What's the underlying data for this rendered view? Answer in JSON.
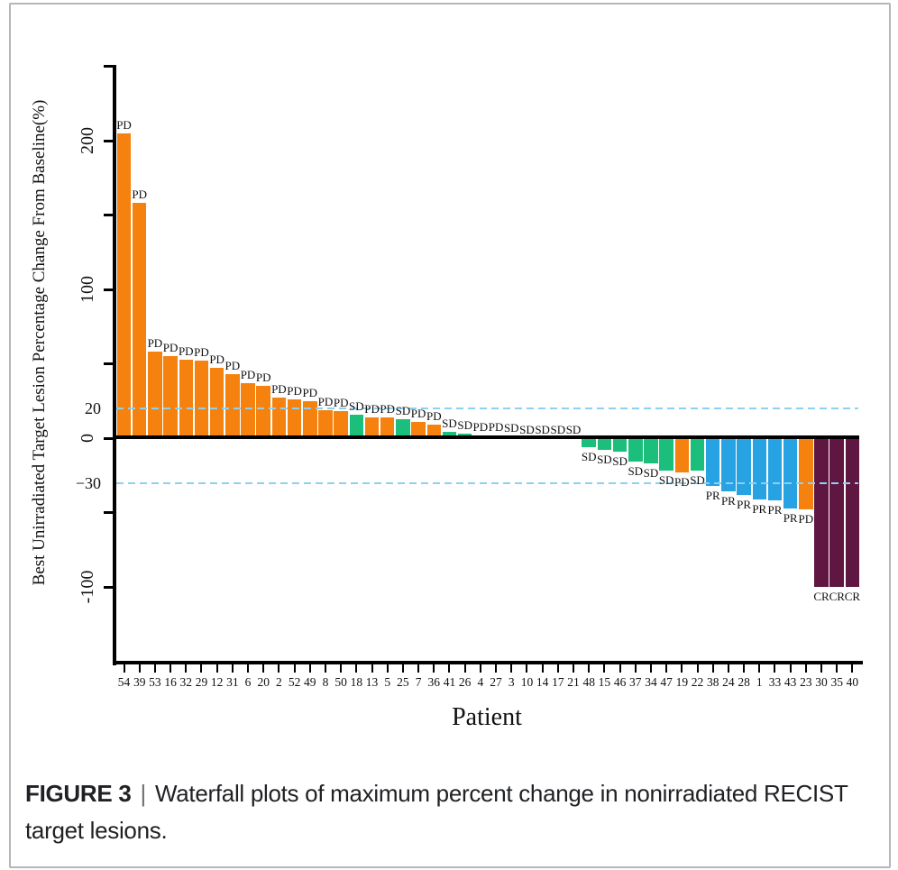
{
  "figure": {
    "caption_label": "FIGURE 3",
    "caption_separator": "|",
    "caption_text": "Waterfall plots of maximum percent change in nonirradiated RECIST target lesions."
  },
  "chart_data": {
    "type": "bar",
    "subtype": "waterfall",
    "xlabel": "Patient",
    "ylabel": "Best Unirradiated Target Lesion Percentage Change From Baseline(%)",
    "ylim": [
      -150,
      250
    ],
    "grid": false,
    "legend": "none",
    "yticks": [
      250,
      200,
      150,
      100,
      50,
      0,
      -50,
      -100
    ],
    "ytick_labels": [
      {
        "value": 200,
        "label": "200"
      },
      {
        "value": 100,
        "label": "100"
      },
      {
        "value": 0,
        "label": "0"
      },
      {
        "value": -100,
        "label": "-100"
      }
    ],
    "reference_lines": [
      {
        "value": 20,
        "label": "20"
      },
      {
        "value": -30,
        "label": "−30"
      }
    ],
    "categories": [
      "54",
      "39",
      "53",
      "16",
      "32",
      "29",
      "12",
      "31",
      "6",
      "20",
      "2",
      "52",
      "49",
      "8",
      "50",
      "18",
      "13",
      "5",
      "25",
      "7",
      "36",
      "41",
      "26",
      "4",
      "27",
      "3",
      "10",
      "14",
      "17",
      "21",
      "48",
      "15",
      "46",
      "37",
      "34",
      "47",
      "19",
      "22",
      "38",
      "24",
      "28",
      "1",
      "33",
      "43",
      "23",
      "30",
      "35",
      "40"
    ],
    "values": [
      205,
      158,
      58,
      55,
      53,
      52,
      47,
      43,
      37,
      35,
      27,
      26,
      25,
      19,
      18,
      16,
      14,
      14,
      13,
      11,
      9,
      4,
      3,
      2,
      2,
      1,
      0,
      0,
      0,
      0,
      -6,
      -8,
      -9,
      -16,
      -17,
      -22,
      -23,
      -22,
      -32,
      -36,
      -38,
      -41,
      -42,
      -47,
      -48,
      -100,
      -100,
      -100
    ],
    "response_labels": [
      "PD",
      "PD",
      "PD",
      "PD",
      "PD",
      "PD",
      "PD",
      "PD",
      "PD",
      "PD",
      "PD",
      "PD",
      "PD",
      "PD",
      "PD",
      "SD",
      "PD",
      "PD",
      "SD",
      "PD",
      "PD",
      "SD",
      "SD",
      "PD",
      "PD",
      "SD",
      "SD",
      "SD",
      "SD",
      "SD",
      "SD",
      "SD",
      "SD",
      "SD",
      "SD",
      "SD",
      "PD",
      "SD",
      "PR",
      "PR",
      "PR",
      "PR",
      "PR",
      "PR",
      "PD",
      "CR",
      "CR",
      "CR"
    ],
    "bar_colors": [
      "orange",
      "orange",
      "orange",
      "orange",
      "orange",
      "orange",
      "orange",
      "orange",
      "orange",
      "orange",
      "orange",
      "orange",
      "orange",
      "orange",
      "orange",
      "green",
      "orange",
      "orange",
      "green",
      "orange",
      "orange",
      "green",
      "green",
      "orange",
      "orange",
      "orange",
      "green",
      "green",
      "green",
      "green",
      "green",
      "green",
      "green",
      "green",
      "green",
      "green",
      "orange",
      "green",
      "blue",
      "blue",
      "blue",
      "blue",
      "blue",
      "blue",
      "orange",
      "maroon",
      "maroon",
      "maroon"
    ],
    "palette": {
      "orange": "#F5820E",
      "green": "#1CBE7C",
      "blue": "#27A2E3",
      "maroon": "#5F1640",
      "dashed_line": "#8DD1F1",
      "axis": "#000000"
    }
  }
}
